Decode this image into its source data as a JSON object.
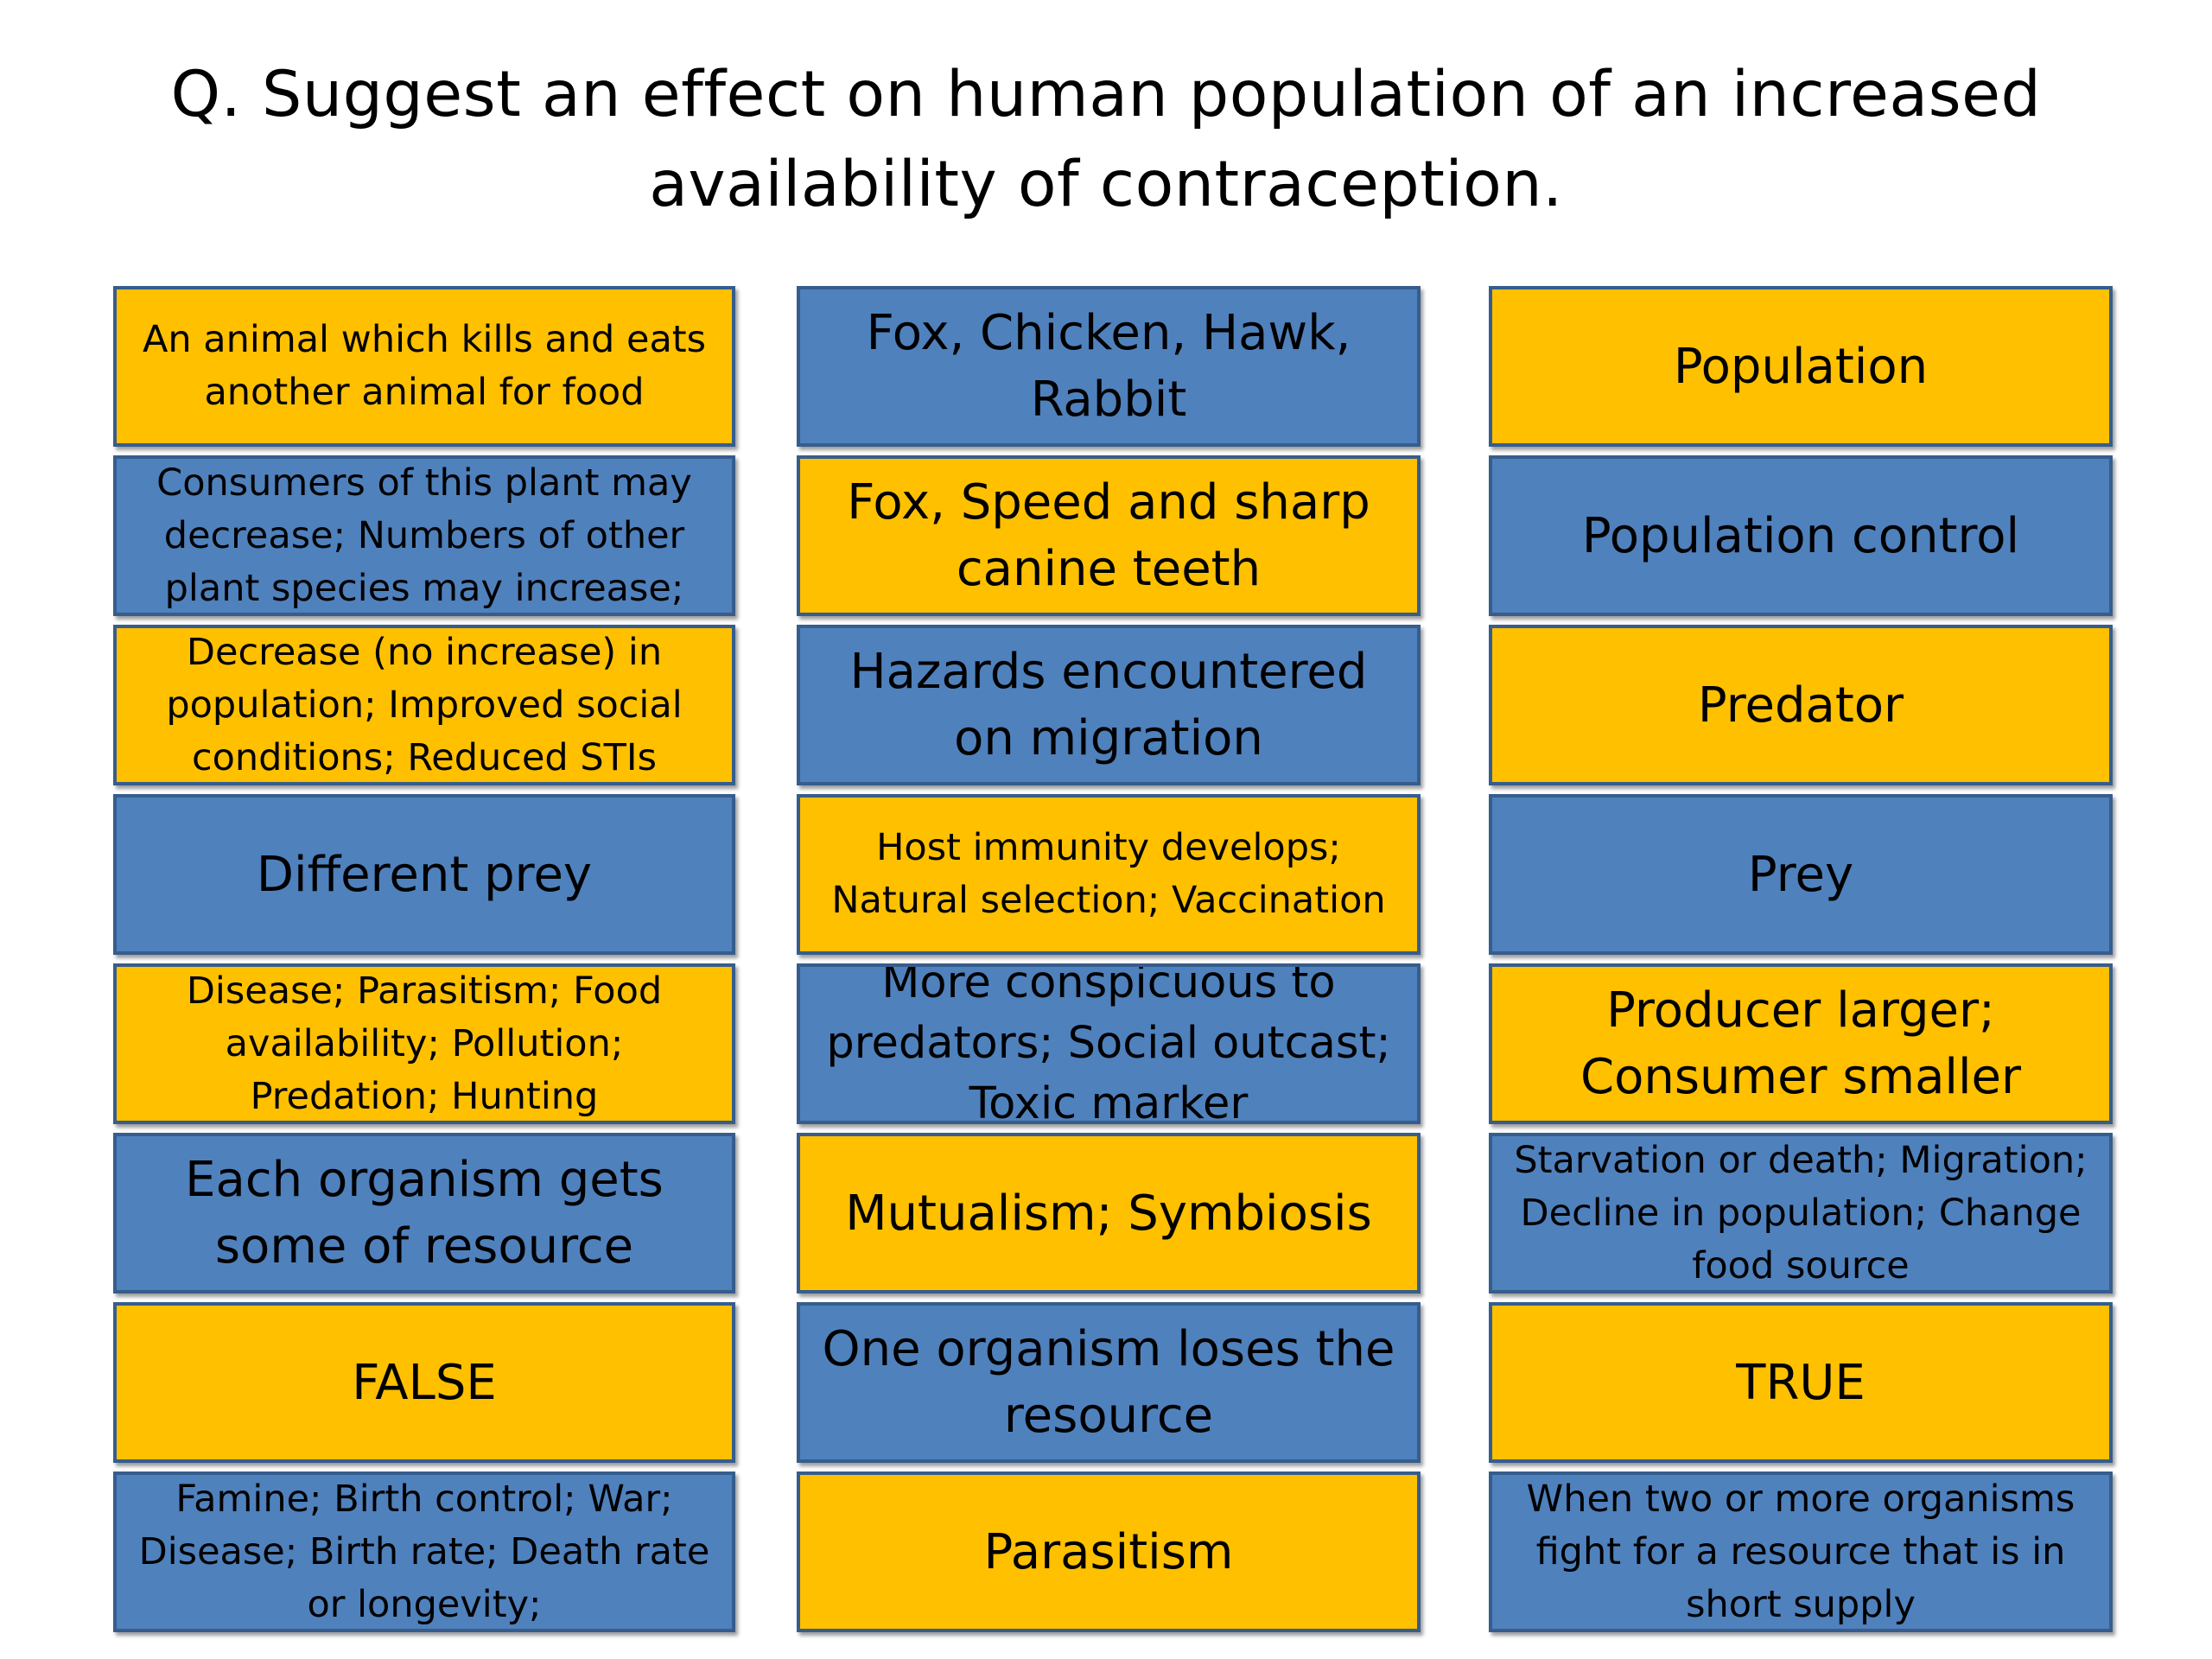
{
  "slide": {
    "title": "Q. Suggest an effect on human population of an increased availability of contraception."
  },
  "colors": {
    "gold": "#ffc000",
    "blue": "#4f81bd",
    "border": "#365d8c"
  },
  "columns": [
    {
      "tiles": [
        {
          "text": "An animal which kills and eats another animal for food",
          "color": "gold"
        },
        {
          "text": "Consumers of this plant may decrease; Numbers of other plant species may increase;",
          "color": "blue"
        },
        {
          "text": "Decrease (no increase) in population; Improved social conditions; Reduced STIs",
          "color": "gold"
        },
        {
          "text": "Different prey",
          "color": "blue"
        },
        {
          "text": "Disease; Parasitism; Food availability; Pollution; Predation; Hunting",
          "color": "gold"
        },
        {
          "text": "Each organism gets some of resource",
          "color": "blue"
        },
        {
          "text": "FALSE",
          "color": "gold"
        },
        {
          "text": "Famine; Birth control; War; Disease; Birth rate; Death rate or longevity;",
          "color": "blue"
        }
      ]
    },
    {
      "tiles": [
        {
          "text": "Fox, Chicken, Hawk, Rabbit",
          "color": "blue"
        },
        {
          "text": "Fox, Speed and sharp canine teeth",
          "color": "gold"
        },
        {
          "text": "Hazards encountered on migration",
          "color": "blue"
        },
        {
          "text": "Host immunity develops; Natural selection; Vaccination",
          "color": "gold"
        },
        {
          "text": "More conspicuous to predators; Social outcast; Toxic marker",
          "color": "blue"
        },
        {
          "text": "Mutualism; Symbiosis",
          "color": "gold"
        },
        {
          "text": "One organism loses the resource",
          "color": "blue"
        },
        {
          "text": "Parasitism",
          "color": "gold"
        }
      ]
    },
    {
      "tiles": [
        {
          "text": "Population",
          "color": "gold"
        },
        {
          "text": "Population control",
          "color": "blue"
        },
        {
          "text": "Predator",
          "color": "gold"
        },
        {
          "text": "Prey",
          "color": "blue"
        },
        {
          "text": "Producer larger; Consumer smaller",
          "color": "gold"
        },
        {
          "text": "Starvation or death; Migration; Decline in population; Change food source",
          "color": "blue"
        },
        {
          "text": "TRUE",
          "color": "gold"
        },
        {
          "text": "When two or more organisms fight for a resource that is in short supply",
          "color": "blue"
        }
      ]
    }
  ]
}
